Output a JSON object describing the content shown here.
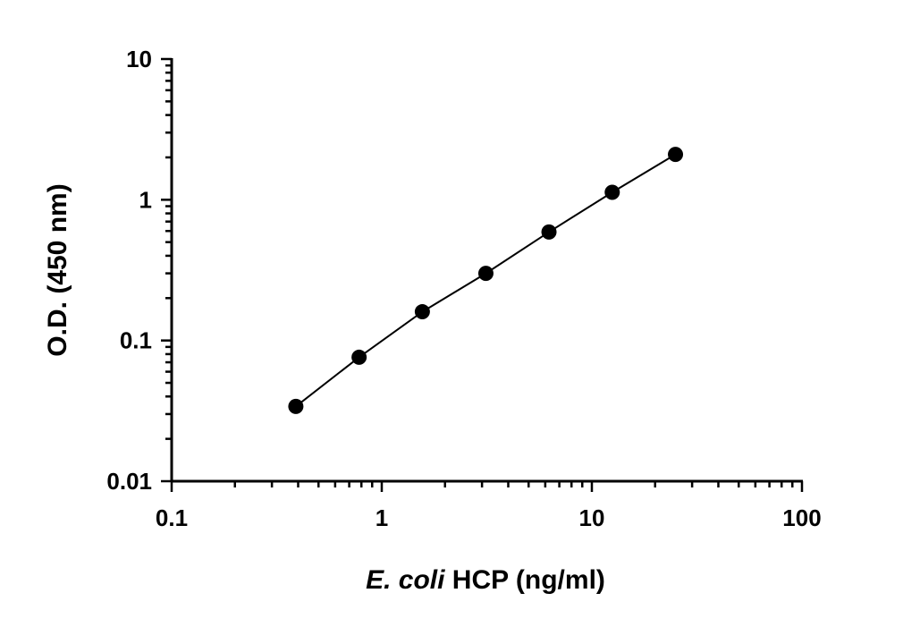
{
  "chart_data": {
    "type": "scatter",
    "xlabel_italic": "E. coli",
    "xlabel_rest": " HCP (ng/ml)",
    "ylabel": "O.D. (450 nm)",
    "x_scale": "log",
    "y_scale": "log",
    "xlim": [
      0.1,
      100
    ],
    "ylim": [
      0.01,
      10
    ],
    "x_ticks": [
      {
        "value": 0.1,
        "label": "0.1"
      },
      {
        "value": 1,
        "label": "1"
      },
      {
        "value": 10,
        "label": "10"
      },
      {
        "value": 100,
        "label": "100"
      }
    ],
    "y_ticks": [
      {
        "value": 0.01,
        "label": "0.01"
      },
      {
        "value": 0.1,
        "label": "0.1"
      },
      {
        "value": 1,
        "label": "1"
      },
      {
        "value": 10,
        "label": "10"
      }
    ],
    "grid": false,
    "legend": "none",
    "series": [
      {
        "x": [
          0.39,
          0.78,
          1.56,
          3.13,
          6.25,
          12.5,
          25
        ],
        "y": [
          0.034,
          0.076,
          0.16,
          0.3,
          0.59,
          1.13,
          2.1
        ],
        "marker": "filled-circle",
        "line": "connected",
        "color": "#000000"
      }
    ]
  }
}
